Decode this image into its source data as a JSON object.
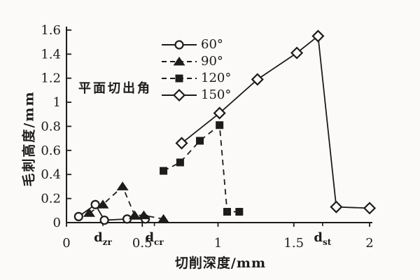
{
  "chart_data": {
    "type": "line",
    "title": "",
    "xlabel": "切削深度/mm",
    "ylabel": "毛刺高度/mm",
    "legend_title": "平面切出角",
    "legend_position": "top-center",
    "grid": false,
    "xlim": [
      0,
      2
    ],
    "ylim": [
      0,
      1.6
    ],
    "x_ticks": [
      {
        "value": 0,
        "label": "0"
      },
      {
        "value": 0.5,
        "label": "0.5"
      },
      {
        "value": 1,
        "label": "1"
      },
      {
        "value": 1.5,
        "label": "1.5"
      },
      {
        "value": 2,
        "label": "2"
      }
    ],
    "x_special_labels": [
      {
        "value": 0.24,
        "base": "d",
        "sub": "zr"
      },
      {
        "value": 0.58,
        "base": "d",
        "sub": "cr"
      },
      {
        "value": 1.69,
        "base": "d",
        "sub": "st"
      }
    ],
    "y_ticks": [
      {
        "value": 0,
        "label": "0"
      },
      {
        "value": 0.2,
        "label": "0.2"
      },
      {
        "value": 0.4,
        "label": "0.4"
      },
      {
        "value": 0.6,
        "label": "0.6"
      },
      {
        "value": 0.8,
        "label": "0.8"
      },
      {
        "value": 1,
        "label": "1"
      },
      {
        "value": 1.2,
        "label": "1.2"
      },
      {
        "value": 1.4,
        "label": "1.4"
      },
      {
        "value": 1.6,
        "label": "1.6"
      }
    ],
    "series": [
      {
        "name": "60°",
        "marker": "circle",
        "line": "solid",
        "points": [
          [
            0.08,
            0.05
          ],
          [
            0.19,
            0.15
          ],
          [
            0.25,
            0.02
          ],
          [
            0.4,
            0.03
          ],
          [
            0.52,
            0.03
          ]
        ]
      },
      {
        "name": "90°",
        "marker": "triangle",
        "line": "dashed",
        "points": [
          [
            0.15,
            0.08
          ],
          [
            0.24,
            0.15
          ],
          [
            0.37,
            0.3
          ],
          [
            0.45,
            0.06
          ],
          [
            0.51,
            0.06
          ],
          [
            0.64,
            0.03
          ]
        ]
      },
      {
        "name": "120°",
        "marker": "square",
        "line": "dashed",
        "points": [
          [
            0.64,
            0.43
          ],
          [
            0.75,
            0.5
          ],
          [
            0.88,
            0.68
          ],
          [
            1.01,
            0.81
          ],
          [
            1.06,
            0.09
          ],
          [
            1.14,
            0.09
          ]
        ]
      },
      {
        "name": "150°",
        "marker": "diamond",
        "line": "solid",
        "points": [
          [
            0.76,
            0.66
          ],
          [
            1.01,
            0.91
          ],
          [
            1.26,
            1.19
          ],
          [
            1.52,
            1.41
          ],
          [
            1.66,
            1.55
          ],
          [
            1.78,
            0.13
          ],
          [
            2.0,
            0.12
          ]
        ]
      }
    ],
    "colors": {
      "ink": "#1d1c1a",
      "background": "#fbfaf8"
    }
  }
}
